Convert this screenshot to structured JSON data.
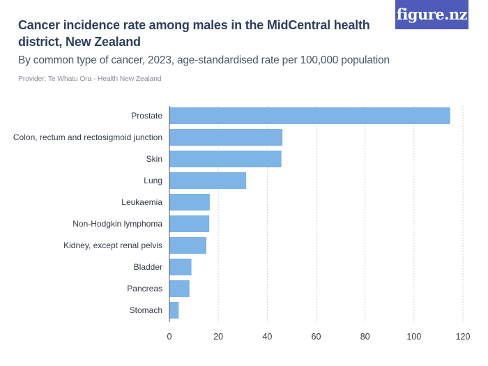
{
  "header": {
    "title": "Cancer incidence rate among males in the MidCentral health district, New Zealand",
    "subtitle": "By common type of cancer, 2023, age-standardised rate per 100,000 population",
    "provider": "Provider: Te Whatu Ora - Health New Zealand",
    "logo": "figure.nz"
  },
  "colors": {
    "bar": "#7eb4e6",
    "grid": "#d0d0d0",
    "text": "#333a45"
  },
  "chart_data": {
    "type": "bar",
    "orientation": "horizontal",
    "categories": [
      "Prostate",
      "Colon, rectum and rectosigmoid junction",
      "Skin",
      "Lung",
      "Leukaemia",
      "Non-Hodgkin lymphoma",
      "Kidney, except renal pelvis",
      "Bladder",
      "Pancreas",
      "Stomach"
    ],
    "values": [
      114.8,
      46.2,
      45.8,
      31.4,
      16.5,
      16.3,
      15.1,
      9.0,
      8.2,
      3.8
    ],
    "xlim": [
      0,
      120
    ],
    "xticks": [
      0,
      20,
      40,
      60,
      80,
      100,
      120
    ],
    "xlabel": "",
    "ylabel": "",
    "grid": "vertical-dashed"
  }
}
